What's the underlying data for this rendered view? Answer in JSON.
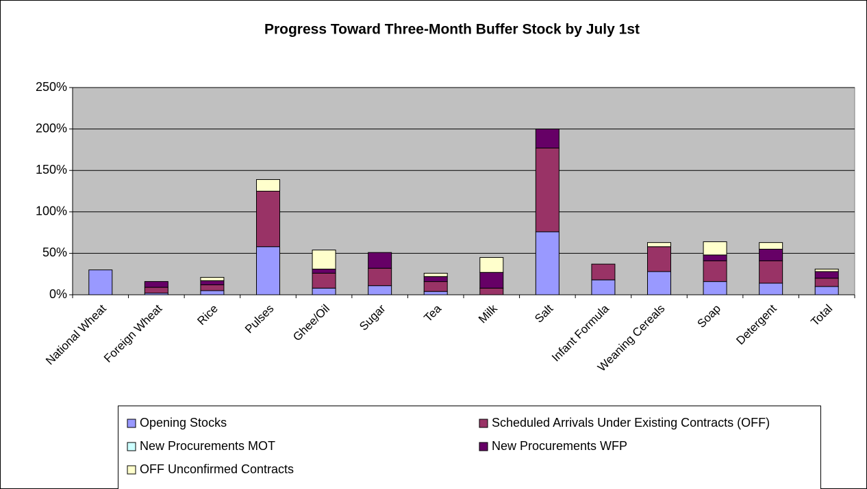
{
  "chart_data": {
    "type": "stacked_bar",
    "title": "Progress Toward Three-Month Buffer Stock by July 1st",
    "categories": [
      "National Wheat",
      "Foreign Wheat",
      "Rice",
      "Pulses",
      "Ghee/Oil",
      "Sugar",
      "Tea",
      "Milk",
      "Salt",
      "Infant Formula",
      "Weaning Cereals",
      "Soap",
      "Detergent",
      "Total"
    ],
    "series": [
      {
        "name": "Opening Stocks",
        "color": "#9999ff",
        "values": [
          30,
          2,
          5,
          58,
          8,
          11,
          4,
          0,
          76,
          18,
          28,
          16,
          14,
          10
        ]
      },
      {
        "name": "Scheduled Arrivals Under Existing Contracts (OFF)",
        "color": "#993366",
        "values": [
          0,
          7,
          7,
          67,
          18,
          21,
          12,
          8,
          101,
          19,
          30,
          25,
          27,
          10
        ]
      },
      {
        "name": "New Procurements MOT",
        "color": "#ccffff",
        "values": [
          0,
          0,
          0,
          0,
          0,
          0,
          0,
          0,
          0,
          0,
          0,
          0,
          0,
          0
        ]
      },
      {
        "name": "New Procurements WFP",
        "color": "#660066",
        "values": [
          0,
          7,
          5,
          0,
          5,
          19,
          6,
          19,
          23,
          0,
          0,
          7,
          14,
          8
        ]
      },
      {
        "name": "OFF Unconfirmed Contracts",
        "color": "#ffffcc",
        "values": [
          0,
          0,
          4,
          14,
          23,
          0,
          4,
          18,
          0,
          0,
          5,
          16,
          8,
          3
        ]
      }
    ],
    "ylim": [
      0,
      250
    ],
    "yticks": [
      {
        "value": 0,
        "label": "0%"
      },
      {
        "value": 50,
        "label": "50%"
      },
      {
        "value": 100,
        "label": "100%"
      },
      {
        "value": 150,
        "label": "150%"
      },
      {
        "value": 200,
        "label": "200%"
      },
      {
        "value": 250,
        "label": "250%"
      }
    ],
    "grid": true,
    "plot_background": "#c0c0c0",
    "legend": "bottom"
  }
}
